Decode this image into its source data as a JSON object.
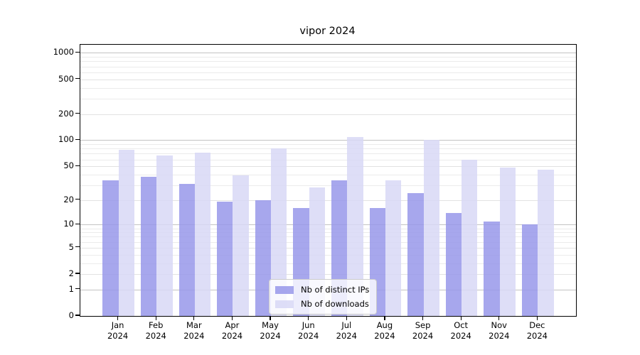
{
  "chart_data": {
    "type": "bar",
    "title": "vipor 2024",
    "scale": "log1p",
    "categories": [
      "Jan",
      "Feb",
      "Mar",
      "Apr",
      "May",
      "Jun",
      "Jul",
      "Aug",
      "Sep",
      "Oct",
      "Nov",
      "Dec"
    ],
    "category_year_label": "2024",
    "series": [
      {
        "name": "Nb of distinct IPs",
        "color": "#9898ea",
        "values": [
          34,
          38,
          31,
          19,
          20,
          16,
          34,
          16,
          24,
          14,
          11,
          10
        ]
      },
      {
        "name": "Nb of downloads",
        "color": "#d8d8f6",
        "values": [
          77,
          66,
          72,
          39,
          81,
          28,
          108,
          34,
          100,
          59,
          48,
          46
        ]
      }
    ],
    "y_ticks": [
      0,
      1,
      2,
      5,
      10,
      20,
      50,
      100,
      200,
      500,
      1000
    ],
    "y_major_gridlines": [
      1,
      10,
      100,
      1000
    ],
    "y_minor_gridlines": [
      3,
      4,
      6,
      7,
      8,
      9,
      30,
      40,
      60,
      70,
      80,
      90,
      300,
      400,
      600,
      700,
      800,
      900
    ],
    "ylim": [
      0,
      1245
    ],
    "legend_position": "lower center",
    "grid": "on",
    "colors": {
      "major_grid": "#c3c3c3",
      "minor_grid": "#ebebeb",
      "axis": "#000000"
    }
  }
}
